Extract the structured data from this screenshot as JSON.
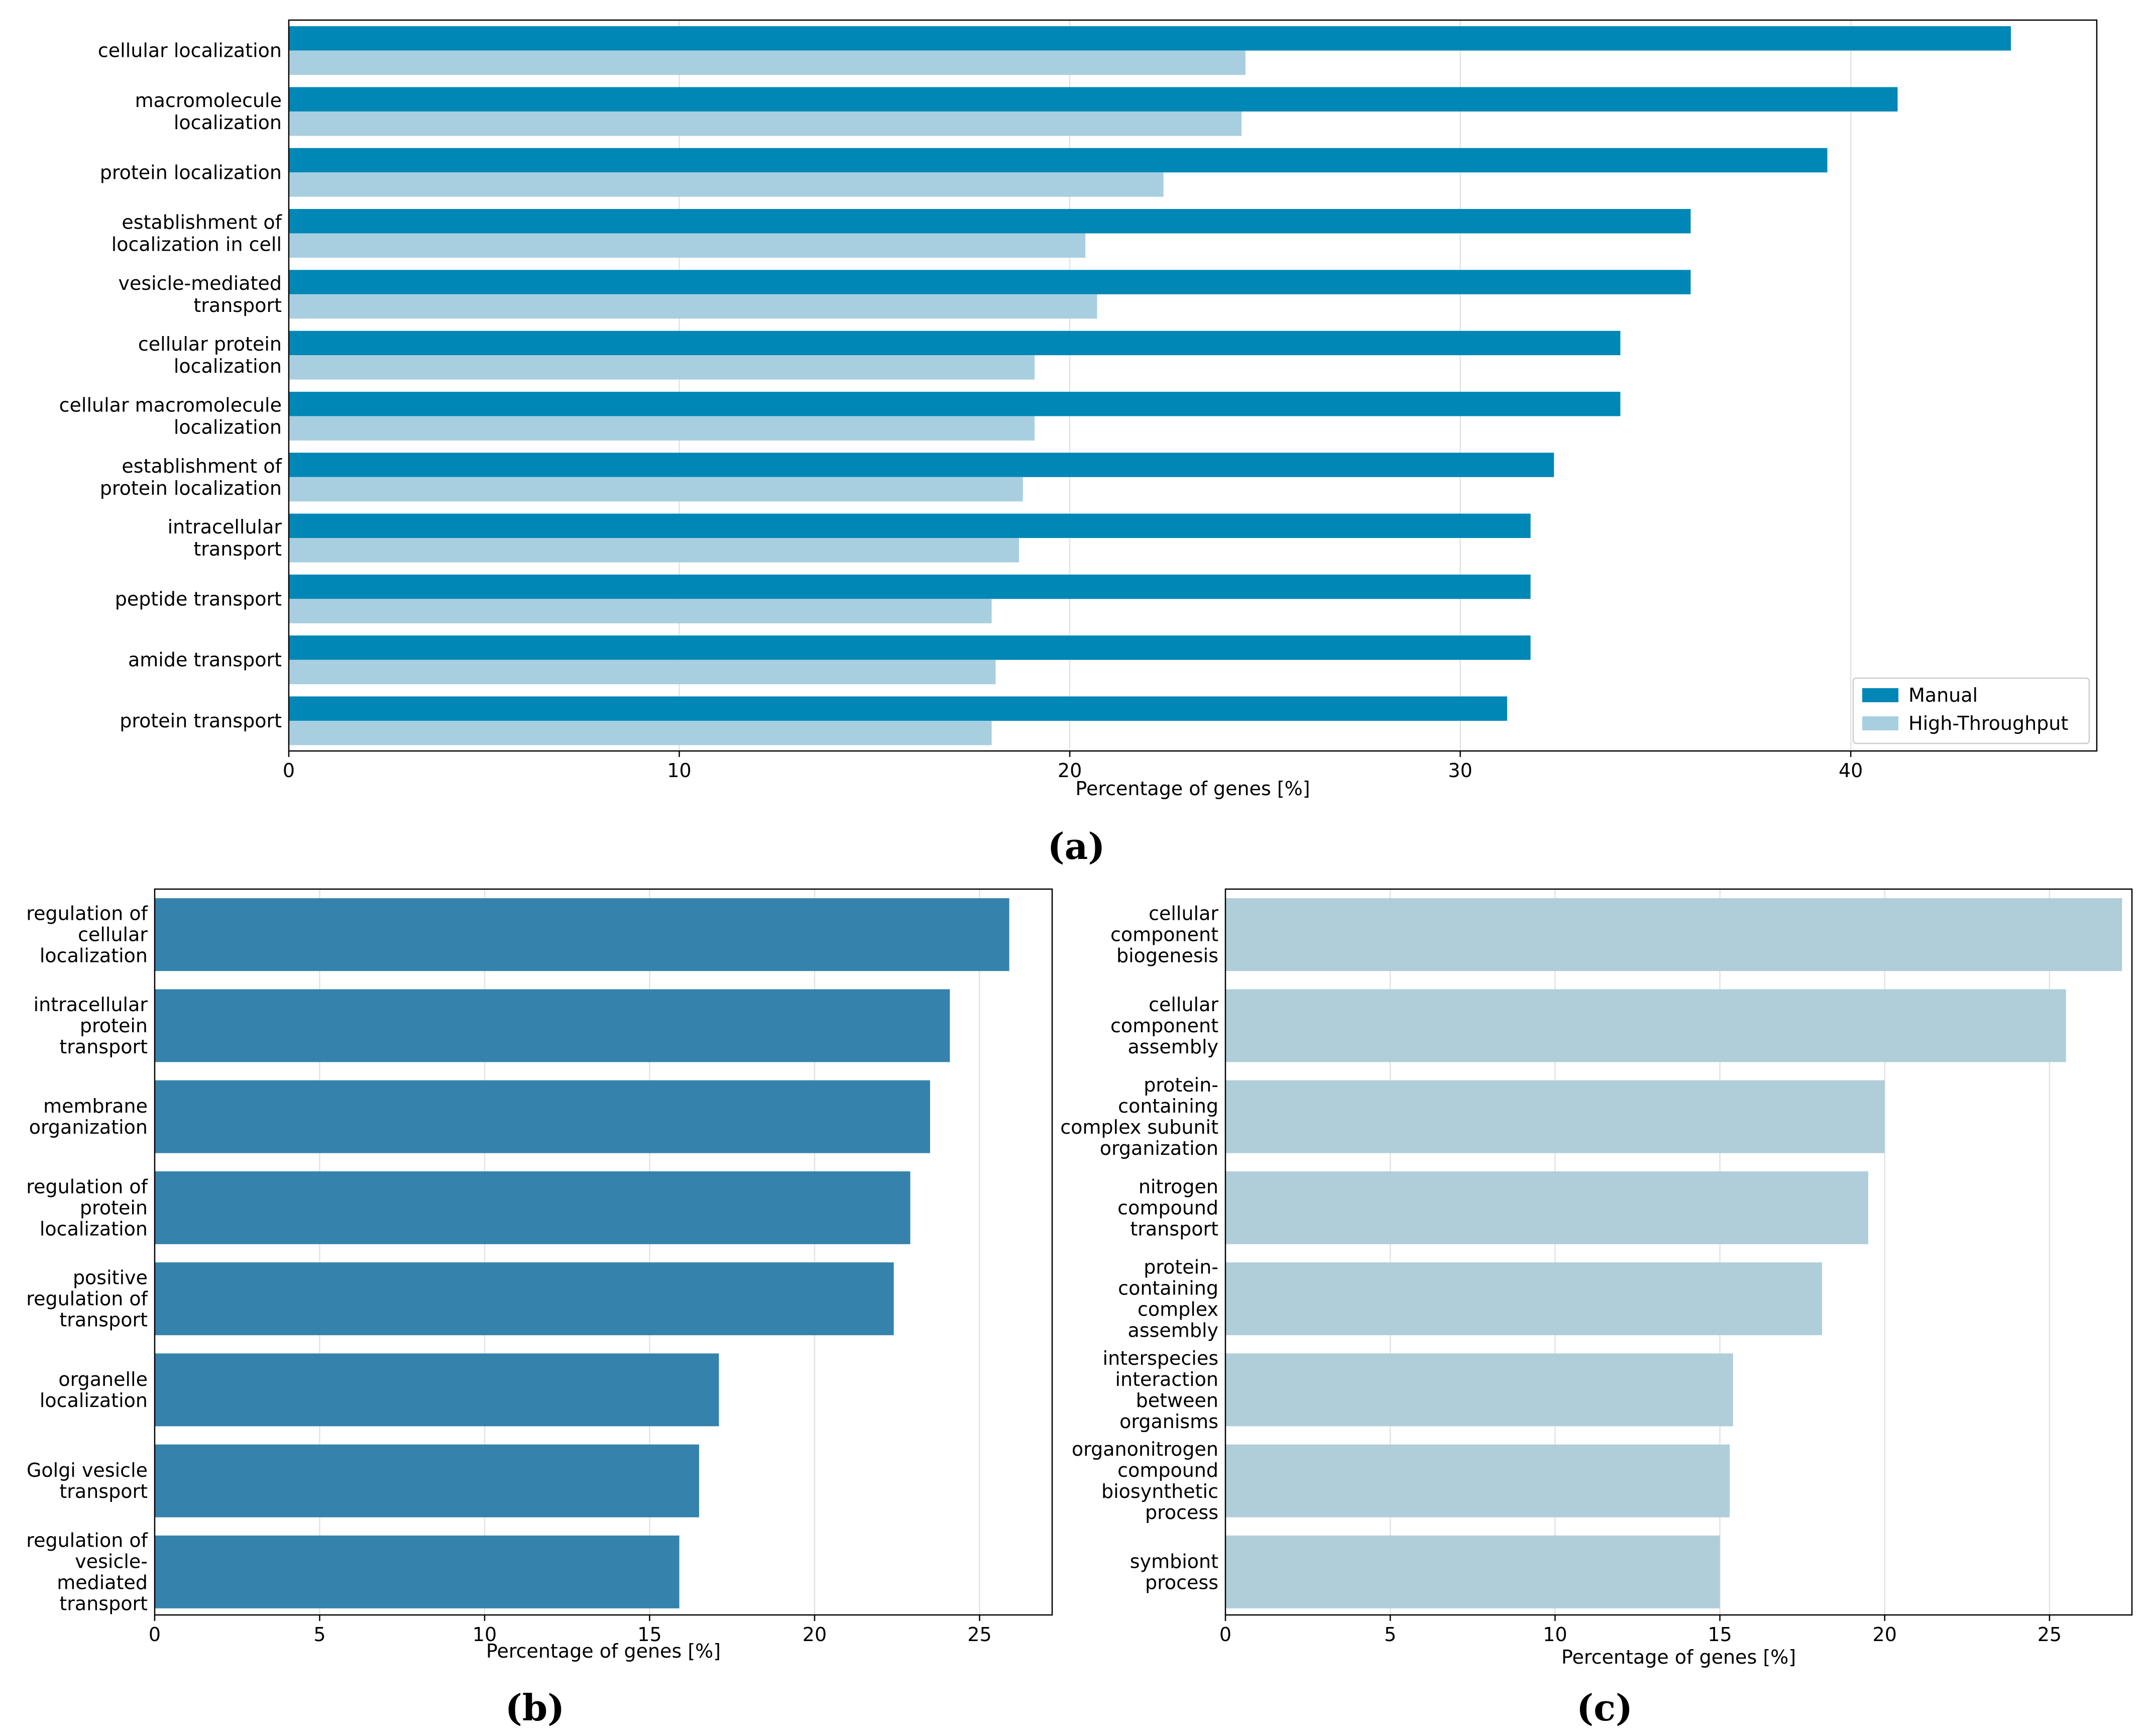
{
  "chart_data": [
    {
      "id": "a",
      "type": "bar",
      "orientation": "horizontal",
      "caption": "(a)",
      "categories": [
        "cellular localization",
        "macromolecule localization",
        "protein localization",
        "establishment of localization in cell",
        "vesicle-mediated transport",
        "cellular protein localization",
        "cellular macromolecule localization",
        "establishment of protein localization",
        "intracellular transport",
        "peptide transport",
        "amide transport",
        "protein transport"
      ],
      "category_lines": [
        [
          "cellular localization"
        ],
        [
          "macromolecule",
          "localization"
        ],
        [
          "protein localization"
        ],
        [
          "establishment of",
          "localization in cell"
        ],
        [
          "vesicle-mediated",
          "transport"
        ],
        [
          "cellular protein",
          "localization"
        ],
        [
          "cellular macromolecule",
          "localization"
        ],
        [
          "establishment of",
          "protein localization"
        ],
        [
          "intracellular",
          "transport"
        ],
        [
          "peptide transport"
        ],
        [
          "amide transport"
        ],
        [
          "protein transport"
        ]
      ],
      "series": [
        {
          "name": "Manual",
          "color": "#0087b5",
          "values": [
            44.1,
            41.2,
            39.4,
            35.9,
            35.9,
            34.1,
            34.1,
            32.4,
            31.8,
            31.8,
            31.8,
            31.2
          ]
        },
        {
          "name": "High-Throughput",
          "color": "#a8cfe0",
          "values": [
            24.5,
            24.4,
            22.4,
            20.4,
            20.7,
            19.1,
            19.1,
            18.8,
            18.7,
            18.0,
            18.1,
            18.0
          ]
        }
      ],
      "xlim": [
        0,
        46.3
      ],
      "xticks": [
        0,
        10,
        20,
        30,
        40
      ],
      "xlabel": "Percentage of genes [%]",
      "legend": "bottom-right",
      "grid": "x"
    },
    {
      "id": "b",
      "type": "bar",
      "orientation": "horizontal",
      "caption": "(b)",
      "color": "#3583ac",
      "categories": [
        "regulation of cellular localization",
        "intracellular protein transport",
        "membrane organization",
        "regulation of protein localization",
        "positive regulation of transport",
        "organelle localization",
        "Golgi vesicle transport",
        "regulation of vesicle-mediated transport"
      ],
      "category_lines": [
        [
          "regulation of",
          "cellular",
          "localization"
        ],
        [
          "intracellular",
          "protein",
          "transport"
        ],
        [
          "membrane",
          "organization"
        ],
        [
          "regulation of",
          "protein",
          "localization"
        ],
        [
          "positive",
          "regulation of",
          "transport"
        ],
        [
          "organelle",
          "localization"
        ],
        [
          "Golgi vesicle",
          "transport"
        ],
        [
          "regulation of",
          "vesicle-",
          "mediated",
          "transport"
        ]
      ],
      "values": [
        25.9,
        24.1,
        23.5,
        22.9,
        22.4,
        17.1,
        16.5,
        15.9
      ],
      "xlim": [
        0,
        27.2
      ],
      "xticks": [
        0,
        5,
        10,
        15,
        20,
        25
      ],
      "xlabel": "Percentage of genes [%]",
      "grid": "x"
    },
    {
      "id": "c",
      "type": "bar",
      "orientation": "horizontal",
      "caption": "(c)",
      "color": "#b0ced9",
      "categories": [
        "cellular component biogenesis",
        "cellular component assembly",
        "protein-containing complex subunit organization",
        "nitrogen compound transport",
        "protein-containing complex assembly",
        "interspecies interaction between organisms",
        "organonitrogen compound biosynthetic process",
        "symbiont process"
      ],
      "category_lines": [
        [
          "cellular",
          "component",
          "biogenesis"
        ],
        [
          "cellular",
          "component",
          "assembly"
        ],
        [
          "protein-",
          "containing",
          "complex subunit",
          "organization"
        ],
        [
          "nitrogen",
          "compound",
          "transport"
        ],
        [
          "protein-",
          "containing",
          "complex",
          "assembly"
        ],
        [
          "interspecies",
          "interaction",
          "between",
          "organisms"
        ],
        [
          "organonitrogen",
          "compound",
          "biosynthetic",
          "process"
        ],
        [
          "symbiont",
          "process"
        ]
      ],
      "values": [
        27.2,
        25.5,
        20.0,
        19.5,
        18.1,
        15.4,
        15.3,
        15.0
      ],
      "xlim": [
        0,
        27.5
      ],
      "xticks": [
        0,
        5,
        10,
        15,
        20,
        25
      ],
      "xlabel": "Percentage of genes [%]",
      "grid": "x"
    }
  ]
}
